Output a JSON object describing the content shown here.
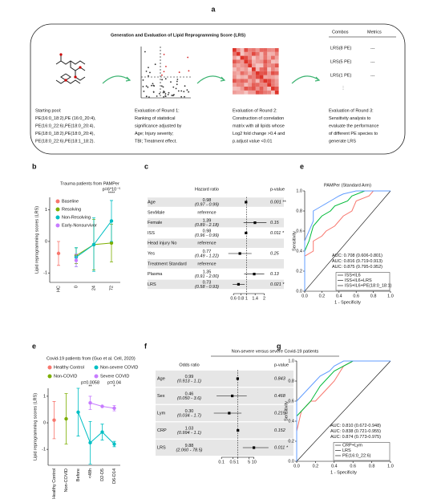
{
  "diagram": {
    "panel": "a",
    "title": "Generation and Evaluation of Lipid Reprogramming Score (LRS)",
    "steps": [
      {
        "lines": [
          "Starting pool:",
          "PE(16:0_18:2),PE (16:0_20:4),",
          "PE(16:0_22:6),PE(18:0_20:4),",
          "PE(18:0_18:2),PE(18:0_20:4),",
          "PE(18:0_22:6),PE(18:1_18:2)."
        ]
      },
      {
        "lines": [
          "Evaluation of Round 1:",
          "Ranking of statistical",
          "significance adjusted by",
          "Age; Injury severity;",
          "TBI; Treatment effect."
        ]
      },
      {
        "lines": [
          "Evaluation of Round 2:",
          "Construction of correlation",
          "matrix with all lipids whose",
          "Log2 fold change >0.4 and",
          "p.adjust value <0.01"
        ]
      },
      {
        "lines": [
          "Evaluation of Round 3:",
          "Sensitivity analysis to",
          "evaluate the performance",
          "of different PE species to",
          "generate LRS"
        ]
      }
    ],
    "table": {
      "headers": [
        "Combos",
        "Metrics"
      ],
      "rows": [
        [
          "LRS(8 PE)",
          "---"
        ],
        [
          "LRS(5 PE)",
          "---"
        ],
        [
          "LRS(1 PE)",
          "---"
        ]
      ]
    }
  },
  "chart_data": [
    {
      "type": "line",
      "panel": "b",
      "title": "Trauma patients from PAMPer",
      "y_label": "Lipid reprogramming scores (LRS)",
      "categories": [
        "HC",
        "0",
        "24",
        "72"
      ],
      "series": [
        {
          "name": "Baseline",
          "color": "#F8766D",
          "values": [
            -0.38,
            null,
            null,
            null
          ],
          "errors": [
            0.38,
            null,
            null,
            null
          ]
        },
        {
          "name": "Resolving",
          "color": "#7CAE00",
          "values": [
            null,
            -0.45,
            -0.1,
            -0.05
          ],
          "errors": [
            null,
            0.25,
            0.8,
            0.6
          ]
        },
        {
          "name": "Non-Resolving",
          "color": "#00BFC4",
          "values": [
            null,
            -0.5,
            -0.1,
            0.65
          ],
          "errors": [
            null,
            0.3,
            0.85,
            0.65
          ]
        },
        {
          "name": "Early-Nonsurvivor",
          "color": "#C77CFF",
          "values": [
            null,
            -0.6,
            null,
            null
          ],
          "errors": [
            null,
            0.2,
            null,
            null
          ]
        }
      ],
      "ylim": [
        -1.3,
        1.4
      ],
      "yticks": [
        -1,
        0,
        1
      ],
      "annotations": [
        {
          "text": "p=6*10⁻⁵",
          "stars": "****"
        }
      ]
    },
    {
      "type": "forest",
      "panel": "c",
      "estimate_header": "Hazard ratio",
      "p_header": "p-value",
      "labels": [
        "Age",
        "SexMale",
        "Female",
        "ISS",
        "Head injury No",
        "Yes",
        "Treatment Standard",
        "Plasma",
        "LRS"
      ],
      "estimate_texts": [
        "0.98",
        "reference",
        "1.39",
        "0.98",
        "reference",
        "0.77",
        "reference",
        "1.35",
        "0.73"
      ],
      "ci_texts": [
        "(0.97 - 0.99)",
        null,
        "(0.89 - 2.18)",
        "(0.96 - 0.99)",
        null,
        "(0.49 - 1.22)",
        null,
        "(0.91 - 2.00)",
        "(0.58 - 0.93)"
      ],
      "p_texts": [
        "0.001 **",
        null,
        "0.15",
        "0.011 *",
        null,
        "0.25",
        null,
        "0.13",
        "0.021 *"
      ],
      "estimates": [
        0.98,
        null,
        1.39,
        0.98,
        null,
        0.77,
        null,
        1.35,
        0.73
      ],
      "lowers": [
        0.97,
        null,
        0.89,
        0.96,
        null,
        0.49,
        null,
        0.91,
        0.58
      ],
      "uppers": [
        0.99,
        null,
        2.18,
        0.99,
        null,
        1.22,
        null,
        2.0,
        0.93
      ],
      "log_x": true,
      "xlim": [
        0.45,
        2.3
      ],
      "xticks": [
        0.6,
        0.8,
        1,
        1.4,
        2
      ],
      "reference_value": 1
    },
    {
      "type": "roc",
      "panel": "e",
      "title": "PAMPer (Standard Arm)",
      "x_label": "1 - Specificity",
      "y_label": "Sensitivity",
      "series": [
        {
          "name": "ISS+IL6",
          "color": "#F8766D",
          "auc_label": "AUC: 0.708 (0.606-0.801)",
          "x": [
            0,
            0,
            0.1,
            0.1,
            0.2,
            0.25,
            0.35,
            0.45,
            0.55,
            0.6,
            0.75,
            0.8,
            1
          ],
          "y": [
            0,
            0.35,
            0.4,
            0.5,
            0.55,
            0.6,
            0.65,
            0.75,
            0.8,
            0.9,
            0.95,
            1,
            1
          ]
        },
        {
          "name": "ISS+IL6+LRS",
          "color": "#00BA38",
          "auc_label": "AUC: 0.816 (0.719-0.913)",
          "x": [
            0,
            0,
            0.05,
            0.1,
            0.15,
            0.2,
            0.3,
            0.35,
            0.5,
            0.55,
            0.7,
            1
          ],
          "y": [
            0,
            0.4,
            0.5,
            0.65,
            0.7,
            0.75,
            0.8,
            0.85,
            0.9,
            0.95,
            1,
            1
          ]
        },
        {
          "name": "ISS+IL6+PE(18:0_18:1)",
          "color": "#619CFF",
          "auc_label": "AUC: 0.875 (0.795-0.952)",
          "x": [
            0,
            0,
            0.05,
            0.1,
            0.1,
            0.2,
            0.3,
            0.4,
            0.45,
            0.6,
            1
          ],
          "y": [
            0,
            0.5,
            0.6,
            0.7,
            0.8,
            0.85,
            0.9,
            0.95,
            0.97,
            1,
            1
          ]
        }
      ],
      "xlim": [
        0,
        1
      ],
      "ylim": [
        0,
        1
      ],
      "xticks": [
        {
          "value": 0,
          "label": "0.0"
        },
        0.2,
        0.4,
        0.6,
        0.8,
        {
          "value": 1,
          "label": "1.0"
        }
      ],
      "yticks": [
        {
          "value": 0,
          "label": "0.0"
        },
        0.2,
        0.4,
        0.6,
        0.8,
        {
          "value": 1,
          "label": "1.0"
        }
      ]
    },
    {
      "type": "line",
      "panel": "e",
      "title": "Covid-19 patients from (Guo et al. Cell, 2020)",
      "y_label": "Lipid reprogramming scores (LRS)",
      "categories": [
        "Healthy Control",
        "Non-COVID",
        "Before",
        "<48h",
        "D2-D5",
        "D6-D14"
      ],
      "series": [
        {
          "name": "Healthy Control",
          "color": "#F8766D",
          "values": [
            0.1,
            null,
            null,
            null,
            null,
            null
          ],
          "errors": [
            0.7,
            null,
            null,
            null,
            null,
            null
          ]
        },
        {
          "name": "Non-severe COVID",
          "color": "#00BFC4",
          "values": [
            null,
            null,
            0.4,
            -0.75,
            -0.35,
            -0.8
          ],
          "errors": [
            null,
            null,
            0.9,
            0.8,
            0.3,
            0.1
          ]
        },
        {
          "name": "Non-COVID",
          "color": "#7CAE00",
          "values": [
            null,
            0.15,
            null,
            null,
            null,
            null
          ],
          "errors": [
            null,
            0.95,
            null,
            null,
            null,
            null
          ]
        },
        {
          "name": "Severe COVID",
          "color": "#C77CFF",
          "values": [
            null,
            null,
            null,
            0.75,
            0.62,
            0.55
          ],
          "errors": [
            null,
            null,
            null,
            0.25,
            null,
            0.1
          ]
        }
      ],
      "ylim": [
        -1.6,
        1.3
      ],
      "yticks": [
        -1,
        0,
        1
      ],
      "annotations": [
        {
          "text": "p=0.0058",
          "stars": "**"
        },
        {
          "text": "p=0.04",
          "stars": "*"
        }
      ]
    },
    {
      "type": "forest",
      "panel": "f",
      "title": "Non-severe versus severe Covid-19 patients",
      "estimate_header": "Odds ratio",
      "p_header": "p-value",
      "labels": [
        "Age",
        "Sex",
        "Lym",
        "CRP",
        "LRS"
      ],
      "estimate_texts": [
        "0.99",
        "0.46",
        "0.30",
        "1.03",
        "9.88"
      ],
      "ci_texts": [
        "(0.913 - 1.1)",
        "(0.050 - 3.6)",
        "(0.034 - 1.7)",
        "(0.994 - 1.1)",
        "(2.060 - 78.5)"
      ],
      "p_texts": [
        "0.843",
        "0.468",
        "0.215",
        "0.152",
        "0.011 *"
      ],
      "estimates": [
        0.99,
        0.46,
        0.3,
        1.03,
        9.88
      ],
      "lowers": [
        0.913,
        0.05,
        0.034,
        0.994,
        2.06
      ],
      "uppers": [
        1.1,
        3.6,
        1.7,
        1.1,
        78.5
      ],
      "log_x": true,
      "xlim": [
        0.02,
        100
      ],
      "xticks": [
        0.1,
        0.5,
        1,
        5,
        10
      ],
      "reference_value": 1
    },
    {
      "type": "roc",
      "panel": "g",
      "x_label": "1 - Specificity",
      "y_label": "Sensitivity",
      "series": [
        {
          "name": "CRP+Lym",
          "color": "#F8766D",
          "auc_label": "AUC: 0.810 (0.672-0.948)",
          "x": [
            0,
            0,
            0.05,
            0.1,
            0.15,
            0.2,
            0.3,
            0.35,
            0.4,
            0.5,
            0.6,
            1
          ],
          "y": [
            0,
            0.3,
            0.5,
            0.55,
            0.6,
            0.6,
            0.7,
            0.75,
            0.8,
            0.95,
            1,
            1
          ]
        },
        {
          "name": "LRS",
          "color": "#00BA38",
          "auc_label": "AUC: 0.838 (0.721-0.955)",
          "x": [
            0,
            0,
            0.1,
            0.15,
            0.25,
            0.3,
            0.4,
            0.6,
            1
          ],
          "y": [
            0,
            0.45,
            0.55,
            0.6,
            0.75,
            0.8,
            0.9,
            1,
            1
          ]
        },
        {
          "name": "PE(16:0_22:6)",
          "color": "#619CFF",
          "auc_label": "AUC: 0.874 (0.773-0.975)",
          "x": [
            0,
            0,
            0.05,
            0.1,
            0.2,
            0.25,
            0.35,
            0.4,
            0.5,
            1
          ],
          "y": [
            0,
            0.6,
            0.65,
            0.7,
            0.8,
            0.85,
            0.9,
            0.95,
            1,
            1
          ]
        }
      ],
      "xlim": [
        0,
        1
      ],
      "ylim": [
        0,
        1
      ],
      "xticks": [
        {
          "value": 0,
          "label": "0.0"
        },
        0.2,
        0.4,
        0.6,
        0.8,
        {
          "value": 1,
          "label": "1.0"
        }
      ],
      "yticks": [
        {
          "value": 0,
          "label": "0.0"
        },
        0.2,
        0.4,
        0.6,
        0.8,
        {
          "value": 1,
          "label": "1.0"
        }
      ]
    }
  ]
}
